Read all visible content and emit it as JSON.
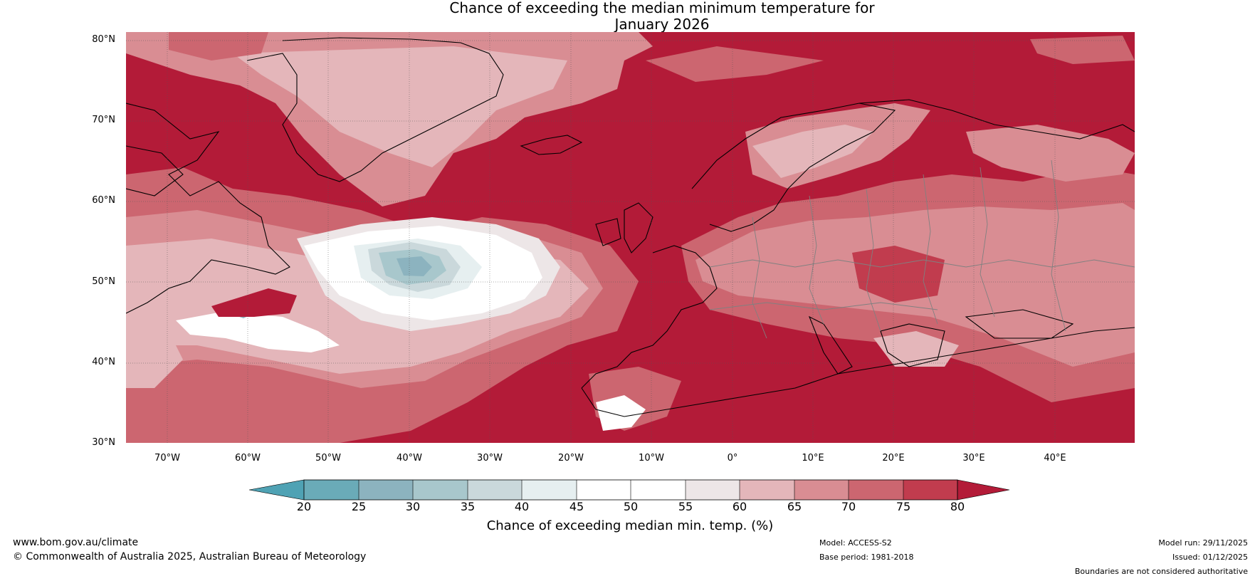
{
  "title": {
    "line1": "Chance of exceeding the median minimum temperature for",
    "line2": "January 2026"
  },
  "map": {
    "region": "North Atlantic and Europe",
    "lat_labels": [
      "80°N",
      "70°N",
      "60°N",
      "50°N",
      "40°N",
      "30°N"
    ],
    "lon_labels": [
      "70°W",
      "60°W",
      "50°W",
      "40°W",
      "30°W",
      "20°W",
      "10°W",
      "0°",
      "10°E",
      "20°E",
      "30°E",
      "40°E"
    ],
    "colors": {
      "c80": "#b31b38",
      "c75": "#c13c4e",
      "c70": "#cc6670",
      "c65": "#d98d93",
      "c60": "#e4b6ba",
      "c55": "#ede6e7",
      "c50": "#ffffff",
      "c45": "#ffffff",
      "c40": "#e6eff0",
      "c35": "#cad8db",
      "c30": "#a8c7cc",
      "c25": "#8cb3bf",
      "c20": "#6aabb8",
      "clow": "#4fa2b4"
    }
  },
  "colorbar": {
    "ticks": [
      "20",
      "25",
      "30",
      "35",
      "40",
      "45",
      "50",
      "55",
      "60",
      "65",
      "70",
      "75",
      "80"
    ],
    "label": "Chance of exceeding median min. temp. (%)"
  },
  "footer": {
    "website": "www.bom.gov.au/climate",
    "copyright": "© Commonwealth of Australia 2025, Australian Bureau of Meteorology",
    "model": "Model: ACCESS-S2",
    "base_period": "Base period: 1981-2018",
    "model_run": "Model run: 29/11/2025",
    "issued": "Issued: 01/12/2025",
    "disclaimer": "Boundaries are not considered authoritative"
  }
}
